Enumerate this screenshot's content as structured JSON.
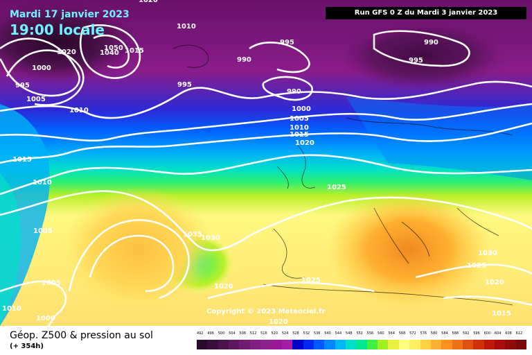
{
  "header": {
    "date": "Mardi 17 janvier 2023",
    "time": "19:00 locale",
    "run": "Run GFS 0 Z du Mardi 3 janvier 2023"
  },
  "copyright": "Copyright © 2023 Meteociel.fr",
  "footer": {
    "title": "Géop. Z500 & pression au sol",
    "subtitle": "(+ 354h)"
  },
  "scale": {
    "labels": [
      "492",
      "496",
      "500",
      "504",
      "508",
      "512",
      "516",
      "520",
      "524",
      "528",
      "532",
      "536",
      "540",
      "544",
      "548",
      "552",
      "556",
      "560",
      "564",
      "568",
      "572",
      "576",
      "580",
      "584",
      "588",
      "592",
      "596",
      "600",
      "604",
      "608",
      "612"
    ],
    "colors": [
      "#2a0a2a",
      "#3b0f3b",
      "#4c124c",
      "#5e165e",
      "#701a70",
      "#801f80",
      "#8c228c",
      "#981898",
      "#a51ca5",
      "#0000c8",
      "#0028f0",
      "#0058ff",
      "#0088ff",
      "#00b8f8",
      "#00e0c8",
      "#00e890",
      "#40f040",
      "#a0f020",
      "#e8f040",
      "#ffff80",
      "#fff060",
      "#ffd040",
      "#ffb030",
      "#ff9020",
      "#f07018",
      "#e05010",
      "#d03008",
      "#c01808",
      "#a80c0c",
      "#900a0a",
      "#7a0808"
    ]
  },
  "isobars": [
    "1020",
    "1010",
    "1020",
    "1040",
    "1050",
    "1015",
    "1000",
    "995",
    "1005",
    "1010",
    "995",
    "995",
    "990",
    "990",
    "995",
    "990",
    "1000",
    "1005",
    "1010",
    "1015",
    "1020",
    "1025",
    "1015",
    "1010",
    "1005",
    "1035",
    "1030",
    "1020",
    "1025",
    "1030",
    "1025",
    "1020",
    "1015",
    "1005",
    "1010",
    "1000",
    "1020"
  ],
  "colors": {
    "accent": "#6ff3ff"
  }
}
